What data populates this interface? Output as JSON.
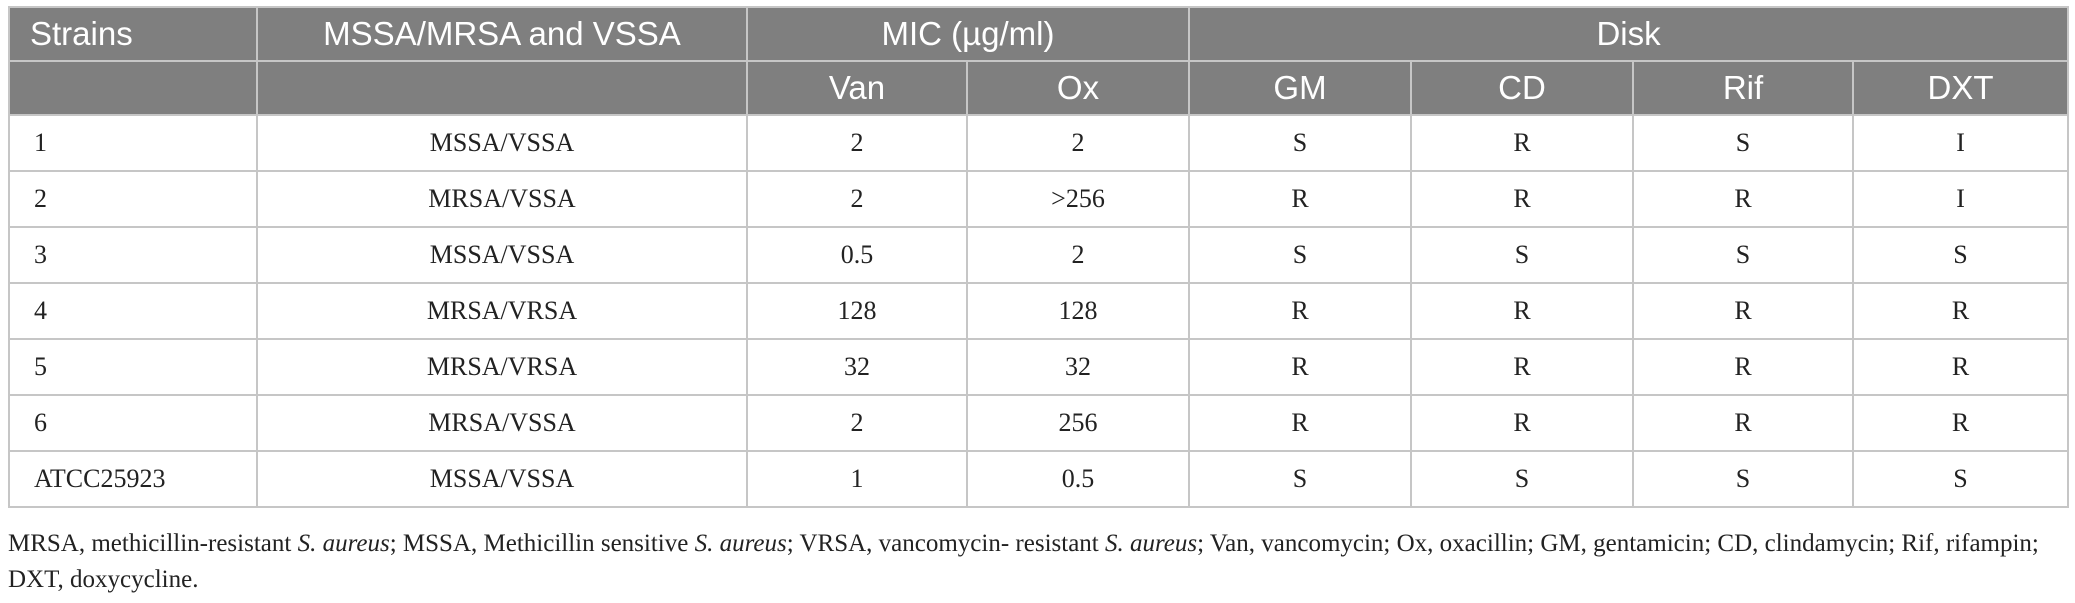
{
  "header": {
    "row1": {
      "strains": "Strains",
      "classification": "MSSA/MRSA and VSSA",
      "mic": "MIC (µg/ml)",
      "disk": "Disk"
    },
    "row2": {
      "van": "Van",
      "ox": "Ox",
      "gm": "GM",
      "cd": "CD",
      "rif": "Rif",
      "dxt": "DXT"
    }
  },
  "rows": [
    {
      "strain": "1",
      "classification": "MSSA/VSSA",
      "van": "2",
      "ox": "2",
      "gm": "S",
      "cd": "R",
      "rif": "S",
      "dxt": "I"
    },
    {
      "strain": "2",
      "classification": "MRSA/VSSA",
      "van": "2",
      "ox": ">256",
      "gm": "R",
      "cd": "R",
      "rif": "R",
      "dxt": "I"
    },
    {
      "strain": "3",
      "classification": "MSSA/VSSA",
      "van": "0.5",
      "ox": "2",
      "gm": "S",
      "cd": "S",
      "rif": "S",
      "dxt": "S"
    },
    {
      "strain": "4",
      "classification": "MRSA/VRSA",
      "van": "128",
      "ox": "128",
      "gm": "R",
      "cd": "R",
      "rif": "R",
      "dxt": "R"
    },
    {
      "strain": "5",
      "classification": "MRSA/VRSA",
      "van": "32",
      "ox": "32",
      "gm": "R",
      "cd": "R",
      "rif": "R",
      "dxt": "R"
    },
    {
      "strain": "6",
      "classification": "MRSA/VSSA",
      "van": "2",
      "ox": "256",
      "gm": "R",
      "cd": "R",
      "rif": "R",
      "dxt": "R"
    },
    {
      "strain": "ATCC25923",
      "classification": "MSSA/VSSA",
      "van": "1",
      "ox": "0.5",
      "gm": "S",
      "cd": "S",
      "rif": "S",
      "dxt": "S"
    }
  ],
  "footnote": {
    "p1": "MRSA, methicillin-resistant ",
    "s1": "S. aureus",
    "p2": "; MSSA, Methicillin sensitive ",
    "s2": "S. aureus",
    "p3": "; VRSA, vancomycin- resistant ",
    "s3": "S. aureus",
    "p4": "; Van, vancomycin; Ox, oxacillin; GM, gentamicin; CD, clindamycin; Rif, rifampin; DXT, doxycycline."
  },
  "colors": {
    "header_bg": "#7f7f7f",
    "header_text": "#ffffff",
    "border": "#c6c6c6"
  }
}
